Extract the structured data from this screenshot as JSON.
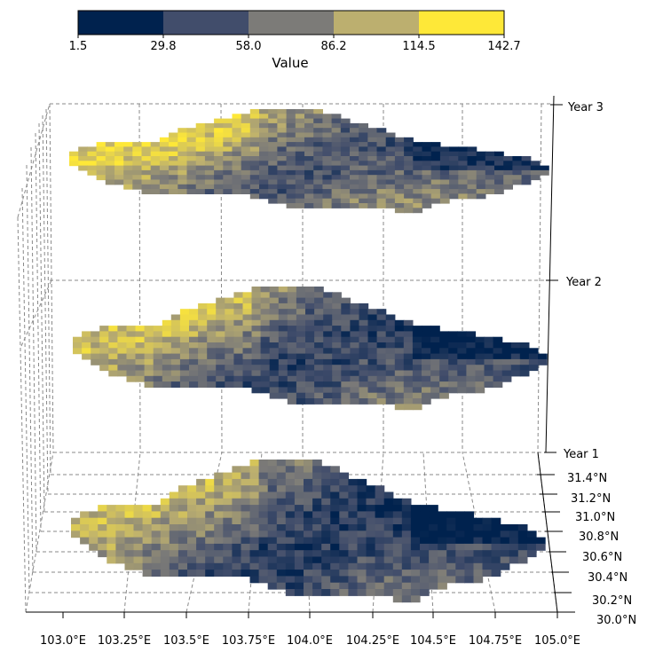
{
  "colorbar": {
    "label": "Value",
    "ticks": [
      "1.5",
      "29.8",
      "58.0",
      "86.2",
      "114.5",
      "142.7"
    ],
    "colors": [
      "#00224e",
      "#414d6b",
      "#7c7b78",
      "#bcaf6f",
      "#fee838"
    ]
  },
  "axes": {
    "x_ticks": [
      "103.0°E",
      "103.25°E",
      "103.5°E",
      "103.75°E",
      "104.0°E",
      "104.25°E",
      "104.5°E",
      "104.75°E",
      "105.0°E"
    ],
    "y_ticks": [
      "30.0°N",
      "30.2°N",
      "30.4°N",
      "30.6°N",
      "30.8°N",
      "31.0°N",
      "31.2°N",
      "31.4°N"
    ],
    "z_ticks": [
      "Year 1",
      "Year 2",
      "Year 3"
    ]
  },
  "chart_data": {
    "type": "heatmap",
    "layers": [
      "Year 1",
      "Year 2",
      "Year 3"
    ],
    "value_range": [
      1.5,
      142.7
    ],
    "colormap": "cividis",
    "lon_range": [
      103.0,
      105.0
    ],
    "lat_range": [
      30.0,
      31.4
    ],
    "grid": true
  }
}
